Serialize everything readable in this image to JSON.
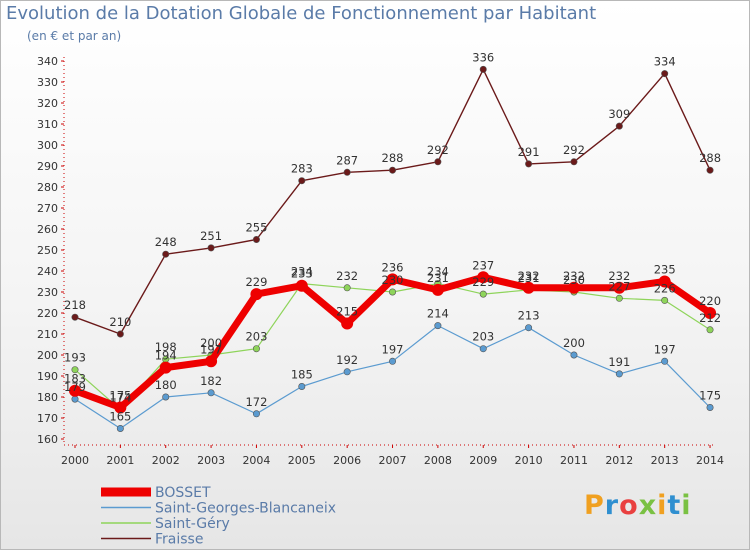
{
  "header": {
    "title": "Evolution de la Dotation Globale de Fonctionnement par Habitant",
    "subtitle": "(en € et par an)"
  },
  "logo": {
    "text": "Proxiti",
    "letter_colors": [
      "#f0a020",
      "#2f8fd0",
      "#e94040",
      "#7ac143",
      "#f0a020",
      "#2f8fd0",
      "#7ac143"
    ]
  },
  "chart_data": {
    "type": "line",
    "x": [
      "2000",
      "2001",
      "2002",
      "2003",
      "2004",
      "2005",
      "2006",
      "2007",
      "2008",
      "2009",
      "2010",
      "2011",
      "2012",
      "2013",
      "2014"
    ],
    "ylim": [
      160,
      340
    ],
    "yticks": [
      160,
      170,
      180,
      190,
      200,
      210,
      220,
      230,
      240,
      250,
      260,
      270,
      280,
      290,
      300,
      310,
      320,
      330,
      340
    ],
    "grid": false,
    "legend_position": "bottom-left",
    "series": [
      {
        "name": "Fraisse",
        "color": "#6b1a1a",
        "values": [
          218,
          210,
          248,
          251,
          255,
          283,
          287,
          288,
          292,
          336,
          291,
          292,
          309,
          334,
          288
        ]
      },
      {
        "name": "Saint-Georges-Blancaneix",
        "color": "#5b9bd0",
        "values": [
          179,
          165,
          180,
          182,
          172,
          185,
          192,
          197,
          214,
          203,
          213,
          200,
          191,
          197,
          175
        ]
      },
      {
        "name": "Saint-Géry",
        "color": "#8ed45a",
        "values": [
          193,
          174,
          198,
          200,
          203,
          234,
          232,
          230,
          234,
          229,
          231,
          230,
          227,
          226,
          212
        ]
      },
      {
        "name": "BOSSET",
        "color": "#ee0000",
        "values": [
          183,
          175,
          194,
          197,
          229,
          233,
          215,
          236,
          231,
          237,
          232,
          232,
          232,
          235,
          220
        ]
      }
    ]
  }
}
